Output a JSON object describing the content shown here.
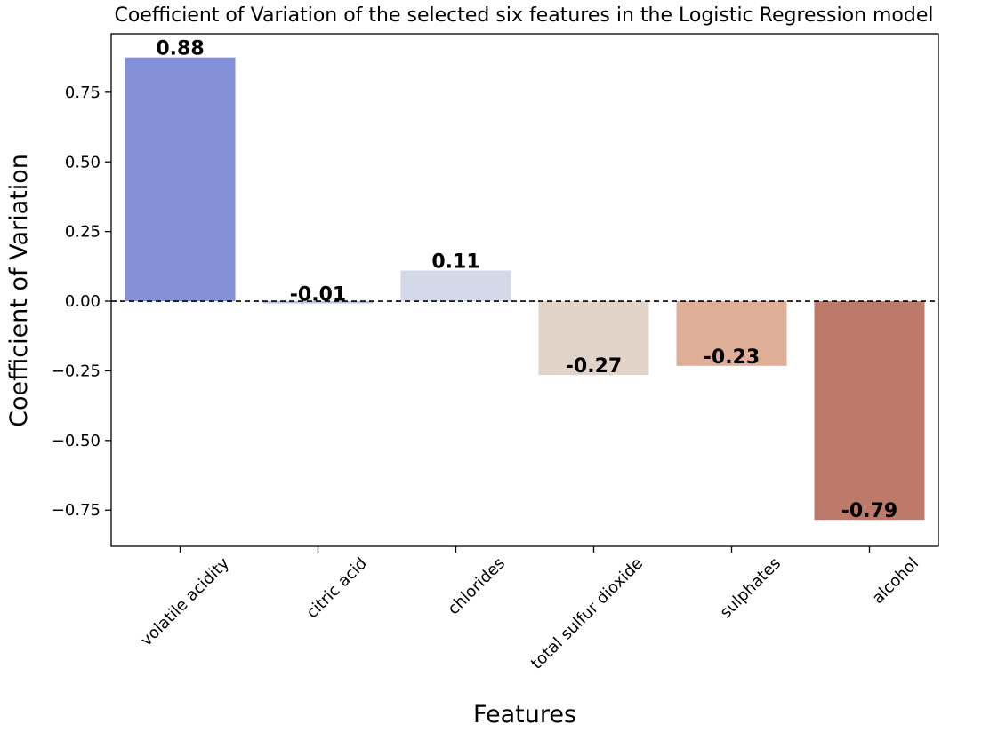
{
  "chart_data": {
    "type": "bar",
    "title": "Coefficient of Variation of the selected six features in the Logistic Regression model",
    "xlabel": "Features",
    "ylabel": "Coefficient of Variation",
    "categories": [
      "volatile acidity",
      "citric acid",
      "chlorides",
      "total sulfur dioxide",
      "sulphates",
      "alcohol"
    ],
    "values": [
      0.875,
      -0.008,
      0.11,
      -0.265,
      -0.232,
      -0.785
    ],
    "data_labels": [
      "0.88",
      "-0.01",
      "0.11",
      "-0.27",
      "-0.23",
      "-0.79"
    ],
    "colors": [
      "#8491d9",
      "#b7c1e4",
      "#d3d9e8",
      "#e2d3c8",
      "#deaf96",
      "#bd7a6a"
    ],
    "ylim": [
      -0.88,
      0.96
    ],
    "yticks": [
      0.75,
      0.5,
      0.25,
      0.0,
      -0.25,
      -0.5,
      -0.75
    ],
    "ytick_labels": [
      "0.75",
      "0.50",
      "0.25",
      "0.00",
      "−0.25",
      "−0.50",
      "−0.75"
    ],
    "reference_line": {
      "y": 0,
      "style": "dashed",
      "color": "#000000"
    },
    "grid": false,
    "legend": "none"
  }
}
